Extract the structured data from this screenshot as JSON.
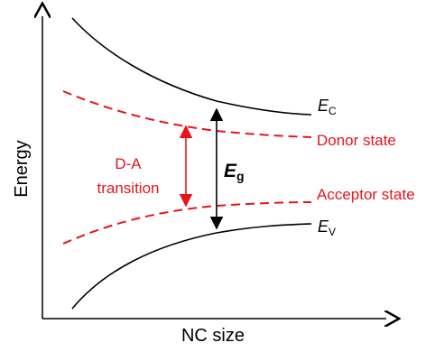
{
  "axes": {
    "y_label": "Energy",
    "x_label": "NC size"
  },
  "levels": {
    "conduction_band": {
      "symbol": "E",
      "subscript": "C"
    },
    "valence_band": {
      "symbol": "E",
      "subscript": "V"
    },
    "donor_state": "Donor state",
    "acceptor_state": "Acceptor state"
  },
  "gap": {
    "symbol": "E",
    "subscript": "g"
  },
  "transition": {
    "line1": "D-A",
    "line2": "transition"
  },
  "colors": {
    "axis": "#000000",
    "band": "#000000",
    "defect": "#e8141c"
  }
}
